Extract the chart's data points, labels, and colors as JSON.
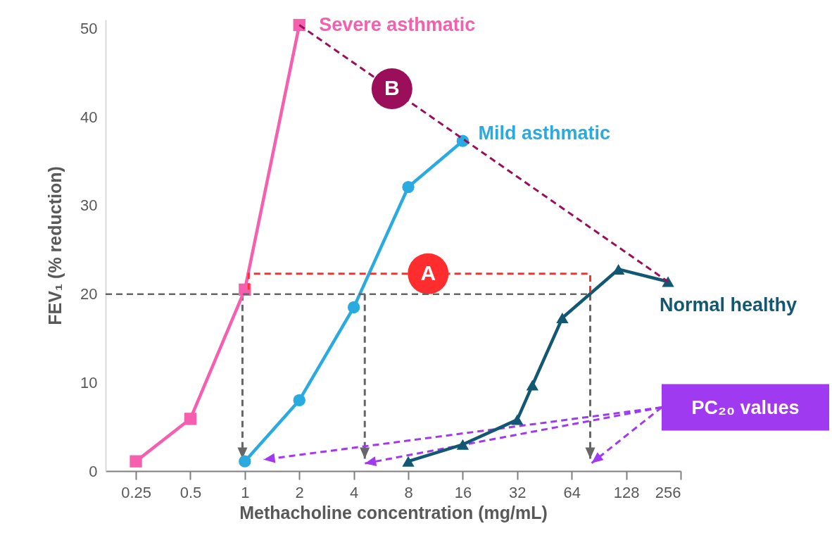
{
  "chart_data": {
    "type": "line",
    "xlabel": "Methacholine concentration (mg/mL)",
    "ylabel": "FEV₁ (% reduction)",
    "log": "x",
    "xlim": [
      0.17,
      256
    ],
    "xticks": [
      0.25,
      0.5,
      1,
      2,
      4,
      8,
      16,
      32,
      64,
      128,
      256
    ],
    "ylim": [
      0,
      51
    ],
    "yticks": [
      0,
      10,
      20,
      30,
      40,
      50
    ],
    "line_style": "solid",
    "series": [
      {
        "name": "Severe asthmatic",
        "color": "#f55fad",
        "marker": "square",
        "x": [
          0.25,
          0.5,
          1,
          2
        ],
        "values": [
          1.1,
          5.9,
          20.5,
          50.4
        ]
      },
      {
        "name": "Mild asthmatic",
        "color": "#29abe2",
        "marker": "circle",
        "x": [
          1,
          2,
          4,
          8,
          16
        ],
        "values": [
          1.1,
          8.0,
          18.5,
          32.1,
          37.3
        ]
      },
      {
        "name": "Normal healthy",
        "color": "#135872",
        "marker": "triangle",
        "x": [
          8,
          16,
          32,
          38.8,
          56.8,
          116,
          218
        ],
        "values": [
          1.1,
          3.0,
          5.8,
          9.7,
          17.3,
          22.8,
          21.4
        ]
      },
      {
        "type": "line",
        "color": "#ff2d2d",
        "line_style": "dashed",
        "marker": "none",
        "x": [
          1.05,
          1.05,
          81,
          81
        ],
        "values": [
          20.5,
          22.3,
          22.3,
          20
        ]
      },
      {
        "type": "line",
        "color": "#9b0f5a",
        "line_style": "dashed",
        "marker": "none",
        "x": [
          2,
          218
        ],
        "values": [
          50.4,
          21.4
        ]
      }
    ],
    "ref_lines": [
      {
        "axis": "y",
        "value": 20,
        "color": "#666666",
        "line_style": "dashed"
      }
    ],
    "annotations": [
      {
        "text": "A",
        "x": 10.3,
        "y": 22.3
      },
      {
        "text": "B",
        "x": 6.5,
        "y": 43.2
      },
      "PC₂₀ values"
    ]
  }
}
